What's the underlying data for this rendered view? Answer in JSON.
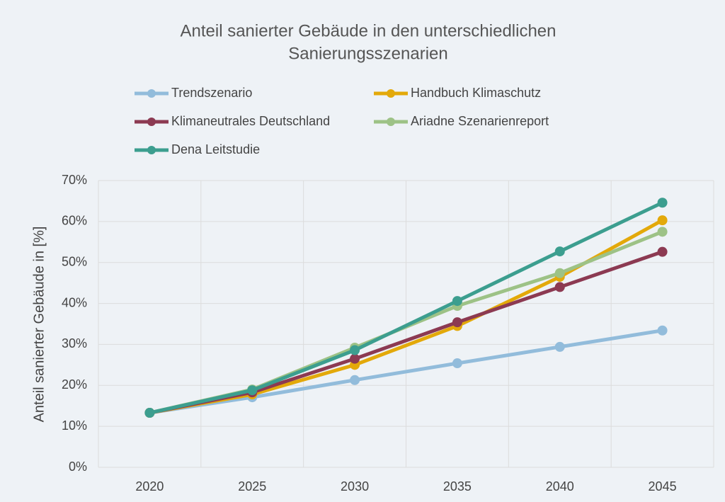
{
  "chart_data": {
    "type": "line",
    "title": [
      "Anteil sanierter Gebäude in den unterschiedlichen",
      "Sanierungsszenarien"
    ],
    "y_label": "Anteil sanierter Gebäude in [%]",
    "categories": [
      "2020",
      "2025",
      "2030",
      "2035",
      "2040",
      "2045"
    ],
    "series": [
      {
        "name": "Trendszenario",
        "color": "#92bcdb",
        "values": [
          13.3,
          17.1,
          21.3,
          25.4,
          29.4,
          33.4
        ]
      },
      {
        "name": "Handbuch Klimaschutz",
        "color": "#e3a90a",
        "values": [
          13.3,
          17.8,
          25.0,
          34.5,
          46.5,
          60.3
        ]
      },
      {
        "name": "Klimaneutrales Deutschland",
        "color": "#8c3a52",
        "values": [
          13.3,
          18.3,
          26.5,
          35.4,
          44.0,
          52.6
        ]
      },
      {
        "name": "Ariadne Szenarienreport",
        "color": "#9dc286",
        "values": [
          13.3,
          19.0,
          29.2,
          39.4,
          47.4,
          57.5
        ]
      },
      {
        "name": "Dena Leitstudie",
        "color": "#3c9e8f",
        "values": [
          13.3,
          18.8,
          28.6,
          40.6,
          52.7,
          64.6
        ]
      }
    ],
    "ylim": [
      0,
      70
    ],
    "yticks": [
      {
        "value": 0,
        "label": "0%"
      },
      {
        "value": 10,
        "label": "10%"
      },
      {
        "value": 20,
        "label": "20%"
      },
      {
        "value": 30,
        "label": "30%"
      },
      {
        "value": 40,
        "label": "40%"
      },
      {
        "value": 50,
        "label": "50%"
      },
      {
        "value": 60,
        "label": "60%"
      },
      {
        "value": 70,
        "label": "70%"
      }
    ],
    "grid": true,
    "legend": "top"
  }
}
